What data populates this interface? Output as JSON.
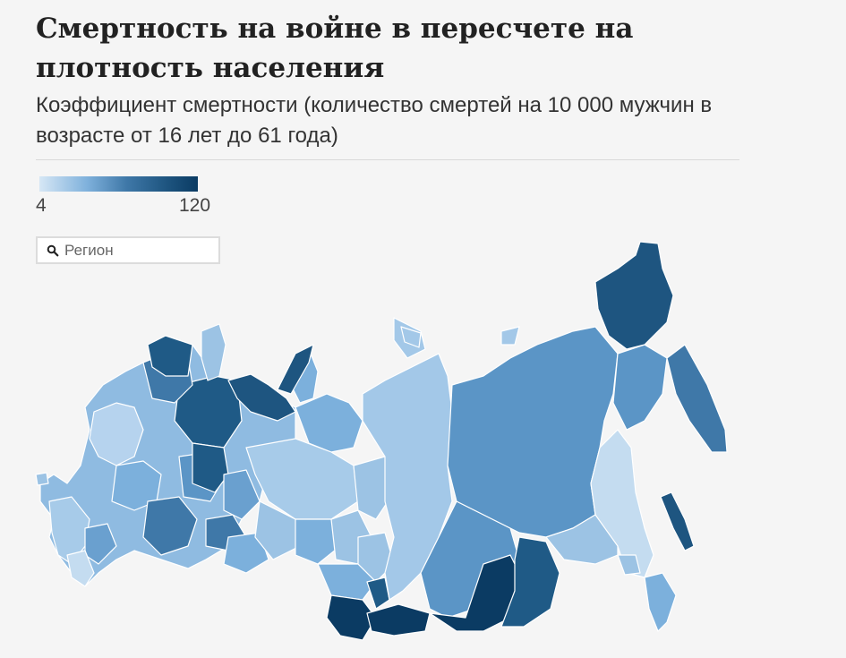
{
  "header": {
    "title": "Смертность на войне в пересчете на плотность населения",
    "subtitle": "Коэффициент смертности (количество смертей на 10 000 мужчин в возрасте от 16 лет до 61 года)"
  },
  "legend": {
    "min_label": "4",
    "max_label": "120",
    "min_value": 4,
    "max_value": 120,
    "colors": [
      "#cfe3f3",
      "#9cc3e4",
      "#6aa0cf",
      "#3f78a8",
      "#1e5580",
      "#0b3b63"
    ]
  },
  "search": {
    "placeholder": "Регион"
  },
  "map": {
    "type": "choropleth",
    "palette": {
      "lightest": "#c4dcf0",
      "light": "#a3c8e8",
      "mid_light": "#7cb0dc",
      "mid": "#5b95c6",
      "mid_dark": "#3f78a8",
      "dark": "#1f5a86",
      "darkest": "#0b3b63"
    }
  }
}
